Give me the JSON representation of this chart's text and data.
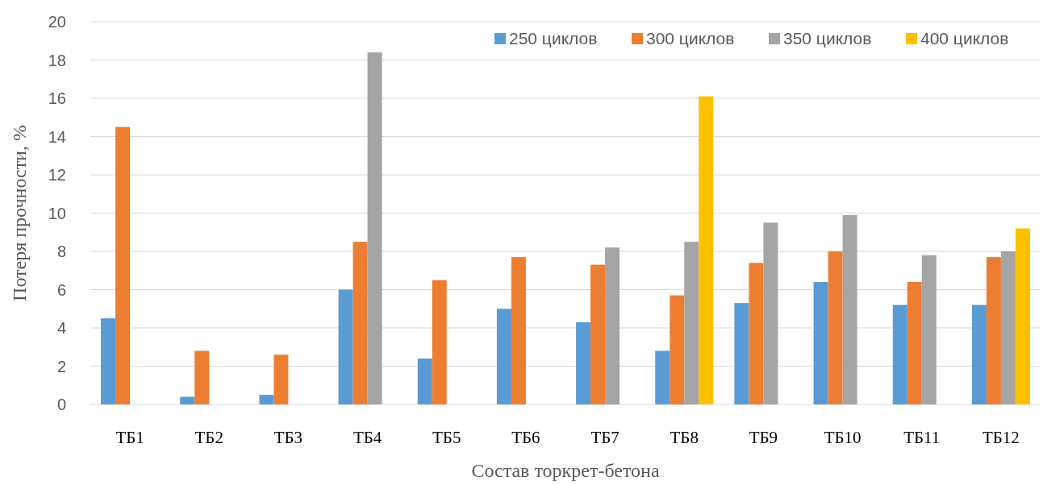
{
  "chart_data": {
    "type": "bar",
    "xlabel": "Состав торкрет-бетона",
    "ylabel": "Потеря прочности, %",
    "categories": [
      "ТБ1",
      "ТБ2",
      "ТБ3",
      "ТБ4",
      "ТБ5",
      "ТБ6",
      "ТБ7",
      "ТБ8",
      "ТБ9",
      "ТБ10",
      "ТБ11",
      "ТБ12"
    ],
    "series": [
      {
        "name": "250 циклов",
        "color": "#5b9bd5",
        "values": [
          4.5,
          0.4,
          0.5,
          6.0,
          2.4,
          5.0,
          4.3,
          2.8,
          5.3,
          6.4,
          5.2,
          5.2
        ]
      },
      {
        "name": "300 циклов",
        "color": "#ed7d31",
        "values": [
          14.5,
          2.8,
          2.6,
          8.5,
          6.5,
          7.7,
          7.3,
          5.7,
          7.4,
          8.0,
          6.4,
          7.7
        ]
      },
      {
        "name": "350 циклов",
        "color": "#a5a5a5",
        "values": [
          null,
          null,
          null,
          18.4,
          null,
          null,
          8.2,
          8.5,
          9.5,
          9.9,
          7.8,
          8.0
        ]
      },
      {
        "name": "400 циклов",
        "color": "#ffc000",
        "values": [
          null,
          null,
          null,
          null,
          null,
          null,
          null,
          16.1,
          null,
          null,
          null,
          9.2
        ]
      }
    ],
    "ylim": [
      0,
      20
    ],
    "yticks": [
      0,
      2,
      4,
      6,
      8,
      10,
      12,
      14,
      16,
      18,
      20
    ],
    "grid": "y",
    "legend": "top right"
  }
}
